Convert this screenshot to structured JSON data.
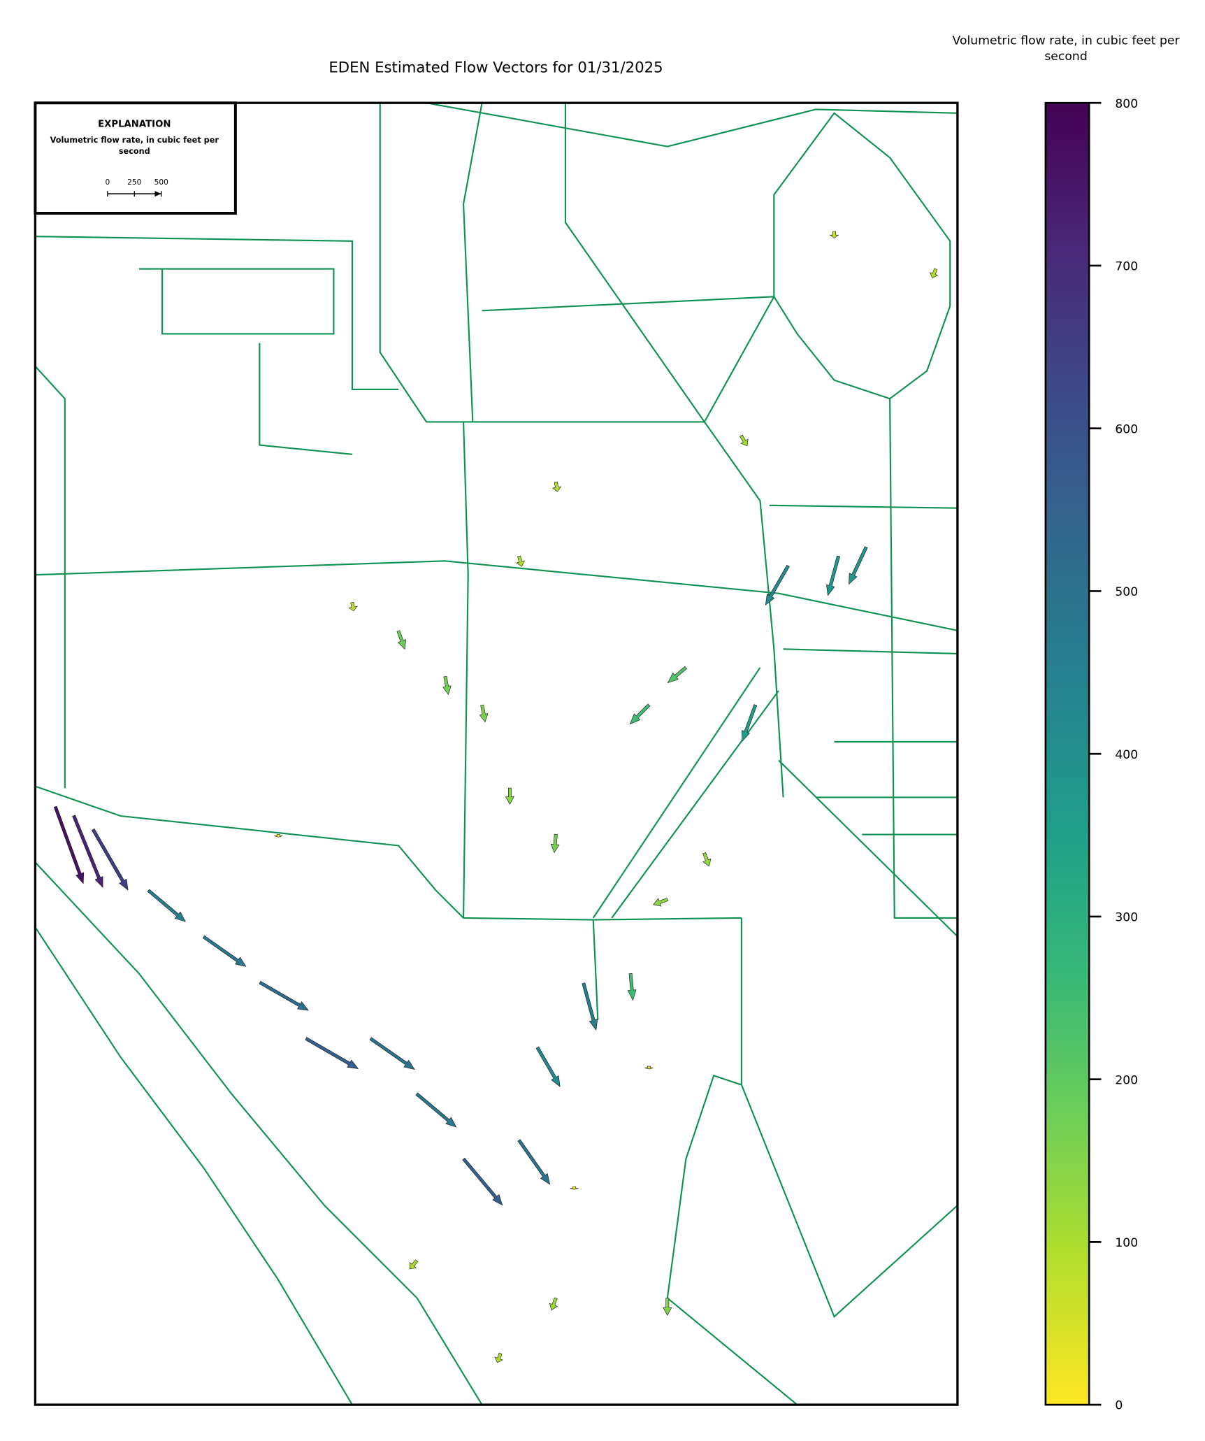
{
  "chart_data": {
    "type": "quiver",
    "title": "EDEN Estimated Flow Vectors for 01/31/2025",
    "xlim": [
      -81.35,
      -80.25
    ],
    "ylim": [
      25.15,
      26.75
    ],
    "legend": {
      "title": "EXPLANATION",
      "label": "Volumetric flow rate, in cubic feet per second",
      "scale_ticks": [
        0,
        250,
        500
      ]
    },
    "colorbar": {
      "label": "Volumetric flow rate, in cubic feet per second",
      "lim": [
        0,
        800
      ],
      "ticks": [
        0,
        100,
        200,
        300,
        400,
        500,
        600,
        700,
        800
      ],
      "colormap": [
        "#fde725",
        "#b5de2b",
        "#6ece58",
        "#35b779",
        "#1f9e89",
        "#26828e",
        "#31688e",
        "#3e4989",
        "#482878",
        "#440154"
      ]
    },
    "vectors": [
      {
        "lon": -81.326,
        "lat": 25.885,
        "magnitude": 760,
        "direction": 160
      },
      {
        "lon": -81.304,
        "lat": 25.874,
        "magnitude": 720,
        "direction": 158
      },
      {
        "lon": -81.281,
        "lat": 25.857,
        "magnitude": 650,
        "direction": 150
      },
      {
        "lon": -81.215,
        "lat": 25.782,
        "magnitude": 450,
        "direction": 130
      },
      {
        "lon": -81.149,
        "lat": 25.725,
        "magnitude": 480,
        "direction": 125
      },
      {
        "lon": -81.082,
        "lat": 25.669,
        "magnitude": 520,
        "direction": 120
      },
      {
        "lon": -81.027,
        "lat": 25.6,
        "magnitude": 560,
        "direction": 120
      },
      {
        "lon": -80.95,
        "lat": 25.6,
        "magnitude": 500,
        "direction": 125
      },
      {
        "lon": -80.895,
        "lat": 25.532,
        "magnitude": 480,
        "direction": 130
      },
      {
        "lon": -80.839,
        "lat": 25.452,
        "magnitude": 560,
        "direction": 140
      },
      {
        "lon": -80.773,
        "lat": 25.475,
        "magnitude": 500,
        "direction": 145
      },
      {
        "lon": -80.751,
        "lat": 25.589,
        "magnitude": 420,
        "direction": 150
      },
      {
        "lon": -80.696,
        "lat": 25.668,
        "magnitude": 450,
        "direction": 165
      },
      {
        "lon": -80.64,
        "lat": 25.68,
        "magnitude": 250,
        "direction": 175
      },
      {
        "lon": -80.452,
        "lat": 26.181,
        "magnitude": 420,
        "direction": 210
      },
      {
        "lon": -80.392,
        "lat": 26.193,
        "magnitude": 380,
        "direction": 195
      },
      {
        "lon": -80.359,
        "lat": 26.204,
        "magnitude": 380,
        "direction": 205
      },
      {
        "lon": -80.491,
        "lat": 26.01,
        "magnitude": 360,
        "direction": 200
      },
      {
        "lon": -80.618,
        "lat": 26.01,
        "magnitude": 250,
        "direction": 225
      },
      {
        "lon": -80.574,
        "lat": 26.056,
        "magnitude": 220,
        "direction": 230
      },
      {
        "lon": -80.784,
        "lat": 25.908,
        "magnitude": 150,
        "direction": 180
      },
      {
        "lon": -80.817,
        "lat": 26.01,
        "magnitude": 160,
        "direction": 170
      },
      {
        "lon": -80.729,
        "lat": 25.851,
        "magnitude": 170,
        "direction": 185
      },
      {
        "lon": -80.917,
        "lat": 26.101,
        "magnitude": 180,
        "direction": 160
      },
      {
        "lon": -80.861,
        "lat": 26.045,
        "magnitude": 170,
        "direction": 170
      },
      {
        "lon": -80.972,
        "lat": 26.136,
        "magnitude": 80,
        "direction": 170
      },
      {
        "lon": -80.397,
        "lat": 26.592,
        "magnitude": 60,
        "direction": 180
      },
      {
        "lon": -80.276,
        "lat": 26.546,
        "magnitude": 90,
        "direction": 200
      },
      {
        "lon": -80.508,
        "lat": 26.341,
        "magnitude": 110,
        "direction": 150
      },
      {
        "lon": -80.729,
        "lat": 26.284,
        "magnitude": 90,
        "direction": 170
      },
      {
        "lon": -80.773,
        "lat": 26.193,
        "magnitude": 100,
        "direction": 165
      },
      {
        "lon": -80.552,
        "lat": 25.828,
        "magnitude": 130,
        "direction": 160
      },
      {
        "lon": -80.596,
        "lat": 25.771,
        "magnitude": 140,
        "direction": 250
      },
      {
        "lon": -80.729,
        "lat": 25.281,
        "magnitude": 120,
        "direction": 200
      },
      {
        "lon": -80.596,
        "lat": 25.281,
        "magnitude": 160,
        "direction": 180
      },
      {
        "lon": -80.795,
        "lat": 25.213,
        "magnitude": 90,
        "direction": 200
      },
      {
        "lon": -80.895,
        "lat": 25.327,
        "magnitude": 100,
        "direction": 220
      },
      {
        "lon": -80.707,
        "lat": 25.418,
        "magnitude": 10,
        "direction": 180
      },
      {
        "lon": -81.06,
        "lat": 25.851,
        "magnitude": 10,
        "direction": 180
      },
      {
        "lon": -80.618,
        "lat": 25.566,
        "magnitude": 12,
        "direction": 180
      }
    ]
  }
}
